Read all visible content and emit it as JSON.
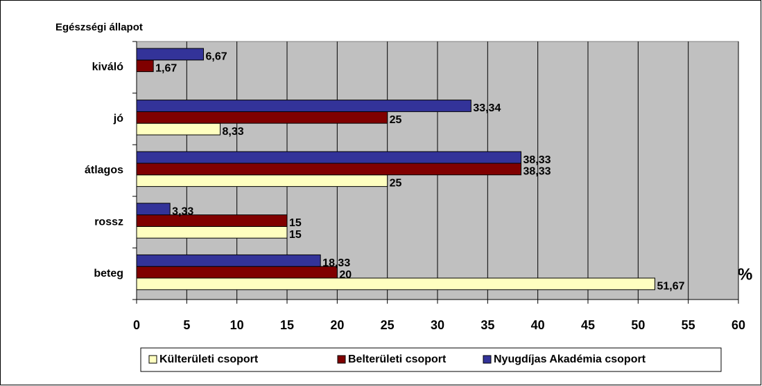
{
  "chart_data": {
    "type": "hbar",
    "y_axis_label": "Egészségi állapot",
    "x_axis_label": "%",
    "categories": [
      "kiváló",
      "jó",
      "átlagos",
      "rossz",
      "beteg"
    ],
    "series": [
      {
        "name": "Külterületi csoport",
        "color": "#ffffc0",
        "values": [
          null,
          8.33,
          25,
          15,
          51.67
        ],
        "value_labels": [
          null,
          "8,33",
          "25",
          "15",
          "51,67"
        ]
      },
      {
        "name": "Belterületi csoport",
        "color": "#800000",
        "values": [
          1.67,
          25,
          38.33,
          15,
          20
        ],
        "value_labels": [
          "1,67",
          "25",
          "38,33",
          "15",
          "20"
        ]
      },
      {
        "name": "Nyugdíjas Akadémia csoport",
        "color": "#333399",
        "values": [
          6.67,
          33.34,
          38.33,
          3.33,
          18.33
        ],
        "value_labels": [
          "6,67",
          "33,34",
          "38,33",
          "3,33",
          "18,33"
        ]
      }
    ],
    "xlim": [
      0,
      60
    ],
    "xticks": [
      0,
      5,
      10,
      15,
      20,
      25,
      30,
      35,
      40,
      45,
      50,
      55,
      60
    ],
    "grid": true,
    "legend": "bottom",
    "plot_background": "#c0c0c0"
  }
}
